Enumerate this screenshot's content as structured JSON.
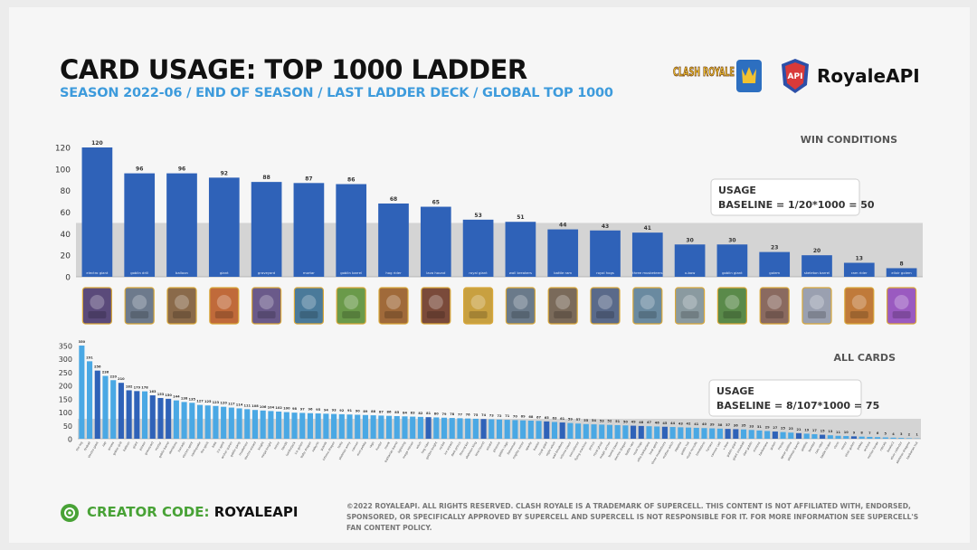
{
  "header": {
    "title": "CARD USAGE: TOP 1000 LADDER",
    "subtitle": "SEASON 2022-06 / END OF SEASON / LAST LADDER DECK / GLOBAL TOP 1000",
    "clash_logo_text": "CLASH ROYALE",
    "api_badge_text": "API",
    "api_name": "RoyaleAPI"
  },
  "colors": {
    "accent": "#3d9bdc",
    "bar_dark": "#2f62b8",
    "bar_light": "#4aa8e4",
    "baseline_band": "#d4d4d4",
    "code_green": "#48a236"
  },
  "chart_data": [
    {
      "type": "bar",
      "section_label": "WIN CONDITIONS",
      "categories": [
        "electro giant",
        "goblin drill",
        "balloon",
        "giant",
        "graveyard",
        "mortar",
        "goblin barrel",
        "hog rider",
        "lava hound",
        "royal giant",
        "wall breakers",
        "battle ram",
        "royal hogs",
        "three musketeers",
        "x-bow",
        "goblin giant",
        "golem",
        "skeleton barrel",
        "ram rider",
        "elixir golem"
      ],
      "values": [
        120,
        96,
        96,
        92,
        88,
        87,
        86,
        68,
        65,
        53,
        51,
        44,
        43,
        41,
        30,
        30,
        23,
        20,
        13,
        8
      ],
      "ylim": [
        0,
        120
      ],
      "yticks": [
        0,
        20,
        40,
        60,
        80,
        100,
        120
      ],
      "baseline": 50,
      "annotation": [
        "USAGE",
        "BASELINE = 1/20*1000 = 50"
      ],
      "card_icon_colors": [
        "#5a4a7a",
        "#6d7a8c",
        "#8a6a4a",
        "#c06a3a",
        "#6a5a8a",
        "#4a7a9a",
        "#6a9a4a",
        "#a06a3a",
        "#7a4a3a",
        "#c8a040",
        "#6a7a8a",
        "#7a6a5a",
        "#5a6a8a",
        "#6a8aa0",
        "#8a9aa0",
        "#5a8a4a",
        "#8a6a60",
        "#9aa0b0",
        "#c07a3a",
        "#9a5ac0"
      ]
    },
    {
      "type": "bar",
      "section_label": "ALL CARDS",
      "categories": [
        "the log",
        "fireball",
        "electro giant",
        "zap",
        "arrows",
        "goblin drill",
        "balloon",
        "giant",
        "poison",
        "graveyard",
        "mortar",
        "goblin barrel",
        "skeletons",
        "tornado",
        "electro spirit",
        "earthquake",
        "fire spirit",
        "bats",
        "ice spirit",
        "archer queen",
        "goblin gang",
        "musketeer",
        "electro wizard",
        "knight",
        "mega knight",
        "miner",
        "bandit",
        "lumberjack",
        "ice golem",
        "baby dragon",
        "valkyrie",
        "guards",
        "inferno dragon",
        "tesla",
        "skeleton army",
        "cannon",
        "mini pekka",
        "rage",
        "hunter",
        "monk",
        "barbarian barrel",
        "lightning",
        "mega minion",
        "witch",
        "hog rider",
        "golden knight",
        "rocket",
        "ice wizard",
        "dark prince",
        "firecracker",
        "skeleton king",
        "lava hound",
        "wizard",
        "phoenix",
        "goblin cage",
        "fisherman",
        "mighty miner",
        "sparky",
        "bowler",
        "royal giant",
        "night witch",
        "wall breakers",
        "inferno tower",
        "executioner",
        "flying machine",
        "prince",
        "royal ghost",
        "magic archer",
        "bomb tower",
        "electro dragon",
        "battle ram",
        "royal hogs",
        "elite barbarians",
        "heal spirit",
        "three musketeers",
        "mother witch",
        "zappies",
        "goblin hut",
        "royal recruits",
        "tombstone",
        "furnace",
        "cannon cart",
        "x-bow",
        "goblin giant",
        "giant snowball",
        "dart goblin",
        "minions",
        "barbarians",
        "golem",
        "freeze",
        "spear goblins",
        "skeleton barrel",
        "goblins",
        "bomber",
        "ram rider",
        "battle healer",
        "clone",
        "mirror",
        "elixir golem",
        "pekka",
        "archers",
        "minion horde",
        "rascals",
        "bowler2",
        "elixir collector",
        "skeleton dragons",
        "barbarian hut"
      ],
      "values": [
        350,
        291,
        256,
        236,
        220,
        210,
        182,
        179,
        178,
        163,
        153,
        150,
        144,
        138,
        135,
        127,
        125,
        123,
        120,
        117,
        114,
        111,
        108,
        106,
        104,
        102,
        100,
        98,
        97,
        96,
        95,
        94,
        93,
        92,
        91,
        90,
        89,
        88,
        87,
        86,
        85,
        84,
        83,
        82,
        81,
        80,
        79,
        78,
        77,
        76,
        75,
        74,
        73,
        72,
        71,
        70,
        69,
        68,
        67,
        65,
        63,
        61,
        59,
        57,
        55,
        54,
        53,
        52,
        51,
        50,
        49,
        48,
        47,
        46,
        45,
        44,
        43,
        42,
        41,
        40,
        39,
        38,
        37,
        36,
        35,
        33,
        31,
        29,
        27,
        25,
        23,
        21,
        19,
        17,
        15,
        13,
        11,
        10,
        9,
        8,
        7,
        6,
        5,
        4,
        3,
        2,
        1
      ],
      "ylim": [
        0,
        350
      ],
      "yticks": [
        0,
        25,
        50,
        75,
        100,
        125,
        150,
        175,
        200,
        225,
        250,
        275,
        300,
        325,
        350
      ],
      "baseline": 75,
      "annotation": [
        "USAGE",
        "BASELINE = 8/107*1000 = 75"
      ]
    }
  ],
  "footer": {
    "creator_label": "CREATOR CODE:",
    "creator_code": "ROYALEAPI",
    "legal": "©2022 ROYALEAPI. ALL RIGHTS RESERVED. CLASH ROYALE IS A TRADEMARK OF SUPERCELL. THIS CONTENT IS NOT AFFILIATED WITH, ENDORSED, SPONSORED, OR SPECIFICALLY APPROVED BY SUPERCELL AND SUPERCELL IS NOT RESPONSIBLE FOR IT. FOR MORE INFORMATION SEE SUPERCELL'S FAN CONTENT POLICY."
  }
}
